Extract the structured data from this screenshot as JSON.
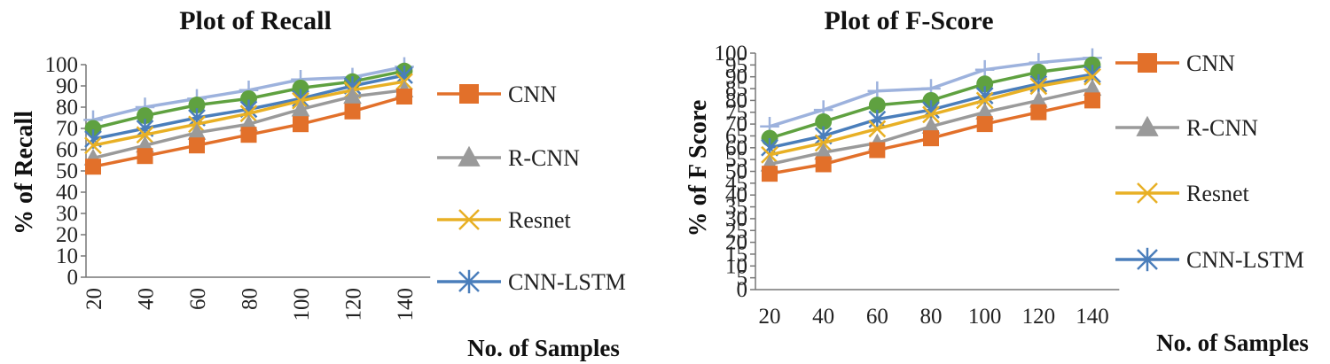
{
  "chart_data": [
    {
      "type": "line",
      "title": "Plot of Recall",
      "xlabel": "No. of Samples",
      "ylabel": "% of Recall",
      "categories": [
        "20",
        "40",
        "60",
        "80",
        "100",
        "120",
        "140"
      ],
      "yticks": [
        "0",
        "10",
        "20",
        "30",
        "40",
        "50",
        "60",
        "70",
        "80",
        "90",
        "100"
      ],
      "ylim": [
        0,
        100
      ],
      "legend_position": "right",
      "series": [
        {
          "name": "CNN",
          "values": [
            52,
            57,
            62,
            67,
            72,
            78,
            85
          ],
          "color": "#E2702A",
          "marker": "square"
        },
        {
          "name": "R-CNN",
          "values": [
            56,
            62,
            68,
            72,
            79,
            85,
            88
          ],
          "color": "#9A9A9A",
          "marker": "triangle"
        },
        {
          "name": "Resnet",
          "values": [
            62,
            67,
            72,
            77,
            83,
            88,
            92
          ],
          "color": "#E8B025",
          "marker": "x"
        },
        {
          "name": "CNN-LSTM",
          "values": [
            65,
            70,
            75,
            79,
            84,
            90,
            95
          ],
          "color": "#4A7EBB",
          "marker": "star"
        },
        {
          "name": "",
          "values": [
            70,
            76,
            81,
            84,
            89,
            92,
            97
          ],
          "color": "#5FA140",
          "marker": "circle"
        },
        {
          "name": "",
          "values": [
            74,
            80,
            84,
            88,
            93,
            94,
            99
          ],
          "color": "#9DB2DD",
          "marker": "plus"
        }
      ]
    },
    {
      "type": "line",
      "title": "Plot of F-Score",
      "xlabel": "No. of Samples",
      "ylabel": "% of F Score",
      "categories": [
        "20",
        "40",
        "60",
        "80",
        "100",
        "120",
        "140"
      ],
      "yticks": [
        "0",
        "5",
        "10",
        "15",
        "20",
        "25",
        "30",
        "35",
        "40",
        "45",
        "50",
        "55",
        "60",
        "65",
        "70",
        "75",
        "80",
        "85",
        "90",
        "95",
        "100"
      ],
      "ylim": [
        0,
        100
      ],
      "legend_position": "right",
      "series": [
        {
          "name": "CNN",
          "values": [
            49,
            53,
            59,
            64,
            70,
            75,
            80
          ],
          "color": "#E2702A",
          "marker": "square"
        },
        {
          "name": "R-CNN",
          "values": [
            53,
            58,
            62,
            69,
            75,
            80,
            85
          ],
          "color": "#9A9A9A",
          "marker": "triangle"
        },
        {
          "name": "Resnet",
          "values": [
            57,
            62,
            68,
            74,
            80,
            86,
            90
          ],
          "color": "#E8B025",
          "marker": "x"
        },
        {
          "name": "CNN-LSTM",
          "values": [
            60,
            65,
            72,
            76,
            82,
            87,
            91
          ],
          "color": "#4A7EBB",
          "marker": "star"
        },
        {
          "name": "",
          "values": [
            64,
            71,
            78,
            80,
            87,
            92,
            95
          ],
          "color": "#5FA140",
          "marker": "circle"
        },
        {
          "name": "",
          "values": [
            69,
            76,
            84,
            85,
            93,
            96,
            98
          ],
          "color": "#9DB2DD",
          "marker": "plus"
        }
      ]
    }
  ]
}
